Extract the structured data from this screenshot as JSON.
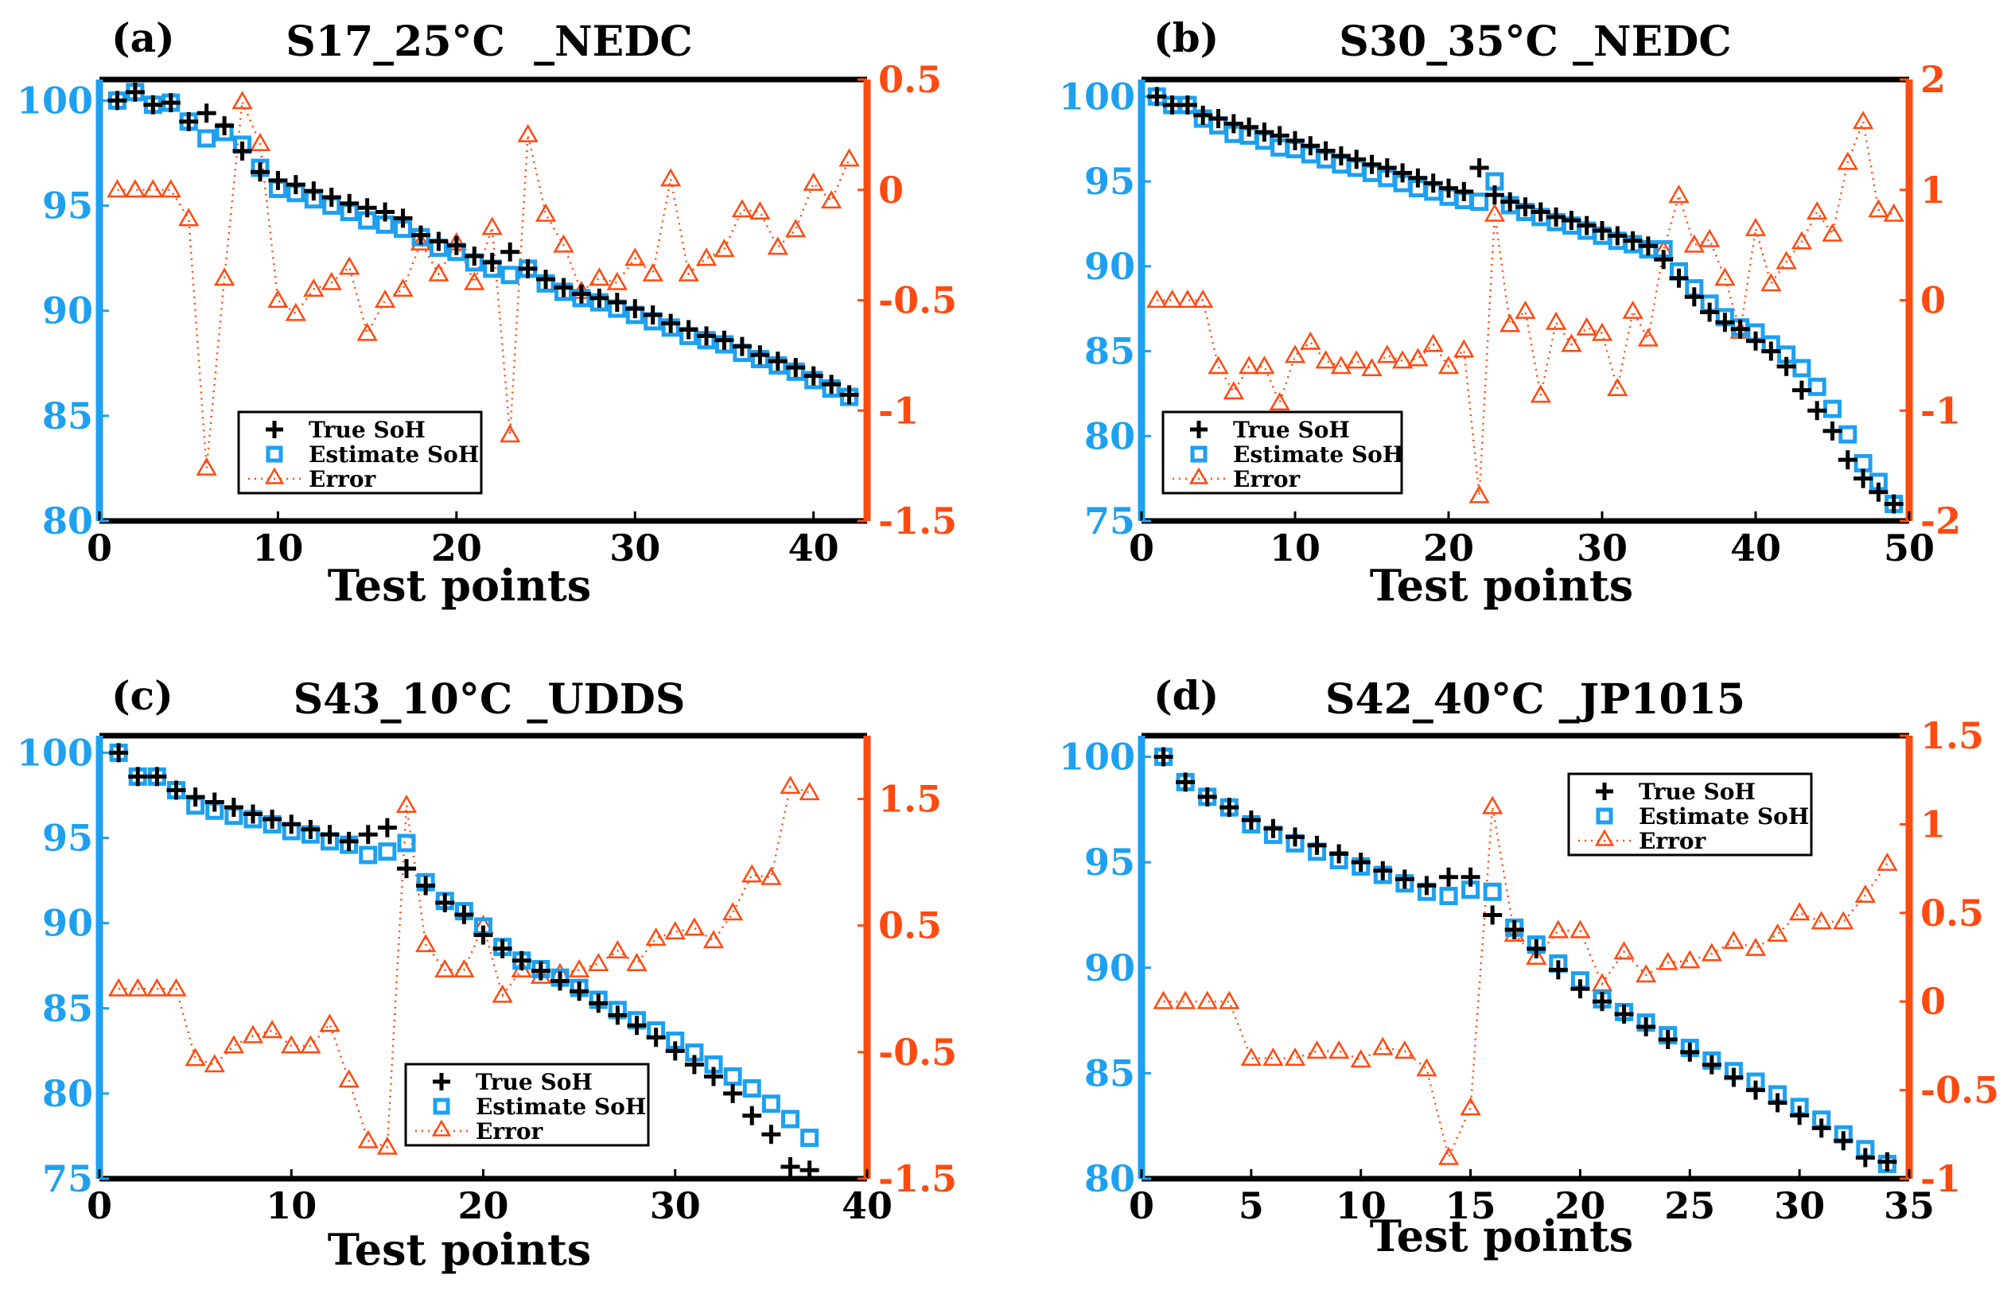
{
  "figure": {
    "x_axis_label": "Test points",
    "legend_labels": [
      "True SoH",
      "Estimate SoH",
      "Error"
    ]
  },
  "colors": {
    "left_axis": "#1ea0f0",
    "right_axis": "#ff4a10",
    "true_marker": "#000000",
    "estimate_marker": "#1ea0f0",
    "error_marker": "#ff4a10"
  },
  "chart_data": [
    {
      "type": "scatter",
      "tag": "(a)",
      "title": "S17_25°C  _NEDC",
      "xlabel": "Test points",
      "xlim": [
        0,
        43
      ],
      "xticks": [
        0,
        10,
        20,
        30,
        40
      ],
      "ylim_left": [
        80,
        101
      ],
      "yticks_left": [
        80,
        85,
        90,
        95,
        100
      ],
      "ylim_right": [
        -1.5,
        0.5
      ],
      "yticks_right": [
        -1.5,
        -1,
        -0.5,
        0,
        0.5
      ],
      "legend": "lower-left",
      "x": [
        1,
        2,
        3,
        4,
        5,
        6,
        7,
        8,
        9,
        10,
        11,
        12,
        13,
        14,
        15,
        16,
        17,
        18,
        19,
        20,
        21,
        22,
        23,
        24,
        25,
        26,
        27,
        28,
        29,
        30,
        31,
        32,
        33,
        34,
        35,
        36,
        37,
        38,
        39,
        40,
        41,
        42
      ],
      "series": [
        {
          "name": "True SoH",
          "axis": "left",
          "values": [
            100.0,
            100.4,
            99.8,
            99.9,
            99.0,
            99.4,
            98.8,
            97.6,
            96.6,
            96.2,
            96.0,
            95.7,
            95.4,
            95.1,
            94.9,
            94.7,
            94.4,
            93.6,
            93.3,
            93.1,
            92.6,
            92.3,
            92.8,
            92.0,
            91.5,
            91.1,
            90.8,
            90.6,
            90.4,
            90.1,
            89.8,
            89.4,
            89.1,
            88.8,
            88.6,
            88.3,
            87.9,
            87.6,
            87.3,
            86.9,
            86.5,
            86.0
          ]
        },
        {
          "name": "Estimate SoH",
          "axis": "left",
          "values": [
            100.0,
            100.4,
            99.8,
            99.9,
            99.0,
            98.2,
            98.5,
            97.9,
            96.8,
            95.8,
            95.6,
            95.3,
            95.0,
            94.7,
            94.3,
            94.1,
            93.9,
            93.5,
            93.0,
            92.8,
            92.3,
            92.0,
            91.7,
            92.0,
            91.3,
            90.9,
            90.6,
            90.4,
            90.1,
            89.8,
            89.5,
            89.2,
            88.8,
            88.6,
            88.4,
            88.0,
            87.7,
            87.4,
            87.1,
            86.7,
            86.3,
            85.9
          ]
        },
        {
          "name": "Error",
          "axis": "right",
          "values": [
            0,
            0,
            0,
            0,
            -0.13,
            -1.26,
            -0.4,
            0.4,
            0.21,
            -0.5,
            -0.56,
            -0.45,
            -0.42,
            -0.35,
            -0.65,
            -0.5,
            -0.45,
            -0.24,
            -0.38,
            -0.24,
            -0.42,
            -0.17,
            -1.11,
            0.25,
            -0.11,
            -0.25,
            -0.46,
            -0.4,
            -0.42,
            -0.31,
            -0.38,
            0.05,
            -0.38,
            -0.31,
            -0.27,
            -0.09,
            -0.1,
            -0.26,
            -0.18,
            0.03,
            -0.05,
            0.14
          ]
        }
      ]
    },
    {
      "type": "scatter",
      "tag": "(b)",
      "title": "S30_35°C _NEDC",
      "xlabel": "Test points",
      "xlim": [
        0,
        50
      ],
      "xticks": [
        0,
        10,
        20,
        30,
        40,
        50
      ],
      "ylim_left": [
        75,
        101
      ],
      "yticks_left": [
        75,
        80,
        85,
        90,
        95,
        100
      ],
      "ylim_right": [
        -2,
        2
      ],
      "yticks_right": [
        -2,
        -1,
        0,
        1,
        2
      ],
      "legend": "lower-left",
      "x": [
        1,
        2,
        3,
        4,
        5,
        6,
        7,
        8,
        9,
        10,
        11,
        12,
        13,
        14,
        15,
        16,
        17,
        18,
        19,
        20,
        21,
        22,
        23,
        24,
        25,
        26,
        27,
        28,
        29,
        30,
        31,
        32,
        33,
        34,
        35,
        36,
        37,
        38,
        39,
        40,
        41,
        42,
        43,
        44,
        45,
        46,
        47,
        48,
        49
      ],
      "series": [
        {
          "name": "True SoH",
          "axis": "left",
          "values": [
            100.0,
            99.5,
            99.5,
            98.9,
            98.7,
            98.4,
            98.2,
            97.9,
            97.7,
            97.4,
            97.1,
            96.8,
            96.5,
            96.3,
            96.0,
            95.8,
            95.5,
            95.2,
            94.9,
            94.6,
            94.4,
            95.8,
            94.2,
            93.8,
            93.5,
            93.2,
            92.9,
            92.7,
            92.4,
            92.1,
            91.8,
            91.5,
            91.2,
            90.4,
            89.3,
            88.2,
            87.3,
            86.7,
            86.3,
            85.6,
            85.0,
            84.1,
            82.7,
            81.5,
            80.3,
            78.6,
            77.5,
            76.7,
            76.0
          ]
        },
        {
          "name": "Estimate SoH",
          "axis": "left",
          "values": [
            100.0,
            99.5,
            99.5,
            98.7,
            98.3,
            97.8,
            97.7,
            97.4,
            97.0,
            96.9,
            96.6,
            96.3,
            96.0,
            95.8,
            95.5,
            95.2,
            94.9,
            94.6,
            94.4,
            94.1,
            93.9,
            93.8,
            95.0,
            93.6,
            93.2,
            92.9,
            92.6,
            92.4,
            92.1,
            91.8,
            91.5,
            91.3,
            91.0,
            91.0,
            89.7,
            88.7,
            87.8,
            87.0,
            86.4,
            86.1,
            85.4,
            84.8,
            84.0,
            82.9,
            81.6,
            80.1,
            78.4,
            77.3,
            76.0
          ]
        },
        {
          "name": "Error",
          "axis": "right",
          "values": [
            0,
            0,
            0,
            0,
            -0.6,
            -0.83,
            -0.6,
            -0.6,
            -0.93,
            -0.5,
            -0.38,
            -0.55,
            -0.6,
            -0.55,
            -0.62,
            -0.5,
            -0.55,
            -0.53,
            -0.4,
            -0.6,
            -0.45,
            -1.77,
            0.78,
            -0.22,
            -0.1,
            -0.86,
            -0.2,
            -0.4,
            -0.25,
            -0.3,
            -0.8,
            -0.1,
            -0.35,
            0.45,
            0.95,
            0.5,
            0.55,
            0.2,
            -0.28,
            0.65,
            0.15,
            0.35,
            0.53,
            0.8,
            0.6,
            1.25,
            1.62,
            0.82,
            0.78
          ]
        }
      ]
    },
    {
      "type": "scatter",
      "tag": "(c)",
      "title": "S43_10°C _UDDS",
      "xlabel": "Test points",
      "xlim": [
        0,
        40
      ],
      "xticks": [
        0,
        10,
        20,
        30,
        40
      ],
      "ylim_left": [
        75,
        101
      ],
      "yticks_left": [
        75,
        80,
        85,
        90,
        95,
        100
      ],
      "ylim_right": [
        -1.5,
        2.0
      ],
      "yticks_right": [
        -1.5,
        -0.5,
        0.5,
        1.5
      ],
      "legend": "lower-center",
      "x": [
        1,
        2,
        3,
        4,
        5,
        6,
        7,
        8,
        9,
        10,
        11,
        12,
        13,
        14,
        15,
        16,
        17,
        18,
        19,
        20,
        21,
        22,
        23,
        24,
        25,
        26,
        27,
        28,
        29,
        30,
        31,
        32,
        33,
        34,
        35,
        36,
        37
      ],
      "series": [
        {
          "name": "True SoH",
          "axis": "left",
          "values": [
            100.0,
            98.6,
            98.6,
            97.8,
            97.4,
            97.1,
            96.8,
            96.4,
            96.1,
            95.8,
            95.5,
            95.2,
            94.8,
            95.2,
            95.6,
            93.2,
            92.2,
            91.2,
            90.5,
            89.3,
            88.5,
            87.8,
            87.2,
            86.6,
            86.0,
            85.3,
            84.6,
            84.0,
            83.3,
            82.5,
            81.7,
            81.0,
            80.0,
            78.7,
            77.6,
            75.7,
            75.5
          ]
        },
        {
          "name": "Estimate SoH",
          "axis": "left",
          "values": [
            100.0,
            98.6,
            98.6,
            97.8,
            96.9,
            96.6,
            96.3,
            96.1,
            95.8,
            95.4,
            95.2,
            94.8,
            94.6,
            94.0,
            94.2,
            94.7,
            92.4,
            91.3,
            90.7,
            89.8,
            88.6,
            87.8,
            87.3,
            86.8,
            86.2,
            85.5,
            84.9,
            84.3,
            83.7,
            83.1,
            82.4,
            81.7,
            81.0,
            80.3,
            79.4,
            78.5,
            77.4
          ]
        },
        {
          "name": "Error",
          "axis": "right",
          "values": [
            0,
            0,
            0,
            0,
            -0.55,
            -0.6,
            -0.45,
            -0.37,
            -0.33,
            -0.45,
            -0.45,
            -0.28,
            -0.72,
            -1.2,
            -1.25,
            1.45,
            0.35,
            0.15,
            0.15,
            0.5,
            -0.05,
            0.15,
            0.1,
            0.12,
            0.15,
            0.2,
            0.3,
            0.2,
            0.4,
            0.45,
            0.48,
            0.38,
            0.6,
            0.9,
            0.88,
            1.6,
            1.55
          ]
        }
      ]
    },
    {
      "type": "scatter",
      "tag": "(d)",
      "title": "S42_40°C _JP1015",
      "xlabel": "Test points",
      "xlim": [
        0,
        35
      ],
      "xticks": [
        0,
        5,
        10,
        15,
        20,
        25,
        30,
        35
      ],
      "ylim_left": [
        80,
        101
      ],
      "yticks_left": [
        80,
        85,
        90,
        95,
        100
      ],
      "ylim_right": [
        -1.0,
        1.5
      ],
      "yticks_right": [
        -1,
        -0.5,
        0,
        0.5,
        1,
        1.5
      ],
      "legend": "top-right",
      "x": [
        1,
        2,
        3,
        4,
        5,
        6,
        7,
        8,
        9,
        10,
        11,
        12,
        13,
        14,
        15,
        16,
        17,
        18,
        19,
        20,
        21,
        22,
        23,
        24,
        25,
        26,
        27,
        28,
        29,
        30,
        31,
        32,
        33,
        34
      ],
      "series": [
        {
          "name": "True SoH",
          "axis": "left",
          "values": [
            100.0,
            98.8,
            98.1,
            97.6,
            97.0,
            96.6,
            96.2,
            95.8,
            95.4,
            95.0,
            94.6,
            94.2,
            93.9,
            94.3,
            94.3,
            92.5,
            91.8,
            90.9,
            89.9,
            89.0,
            88.4,
            87.8,
            87.2,
            86.6,
            86.0,
            85.4,
            84.8,
            84.2,
            83.6,
            83.0,
            82.4,
            81.8,
            81.0,
            80.8
          ]
        },
        {
          "name": "Estimate SoH",
          "axis": "left",
          "values": [
            100.0,
            98.8,
            98.1,
            97.6,
            96.8,
            96.3,
            95.9,
            95.5,
            95.1,
            94.8,
            94.4,
            94.0,
            93.6,
            93.4,
            93.7,
            93.6,
            91.9,
            91.1,
            90.2,
            89.4,
            88.5,
            87.9,
            87.4,
            86.8,
            86.2,
            85.6,
            85.1,
            84.6,
            84.0,
            83.4,
            82.8,
            82.1,
            81.4,
            80.7
          ]
        },
        {
          "name": "Error",
          "axis": "right",
          "values": [
            0,
            0,
            0,
            0,
            -0.32,
            -0.32,
            -0.32,
            -0.28,
            -0.28,
            -0.33,
            -0.26,
            -0.28,
            -0.38,
            -0.88,
            -0.6,
            1.1,
            0.38,
            0.25,
            0.4,
            0.4,
            0.1,
            0.28,
            0.15,
            0.22,
            0.23,
            0.27,
            0.34,
            0.3,
            0.38,
            0.5,
            0.45,
            0.45,
            0.6,
            0.78
          ]
        }
      ]
    }
  ]
}
